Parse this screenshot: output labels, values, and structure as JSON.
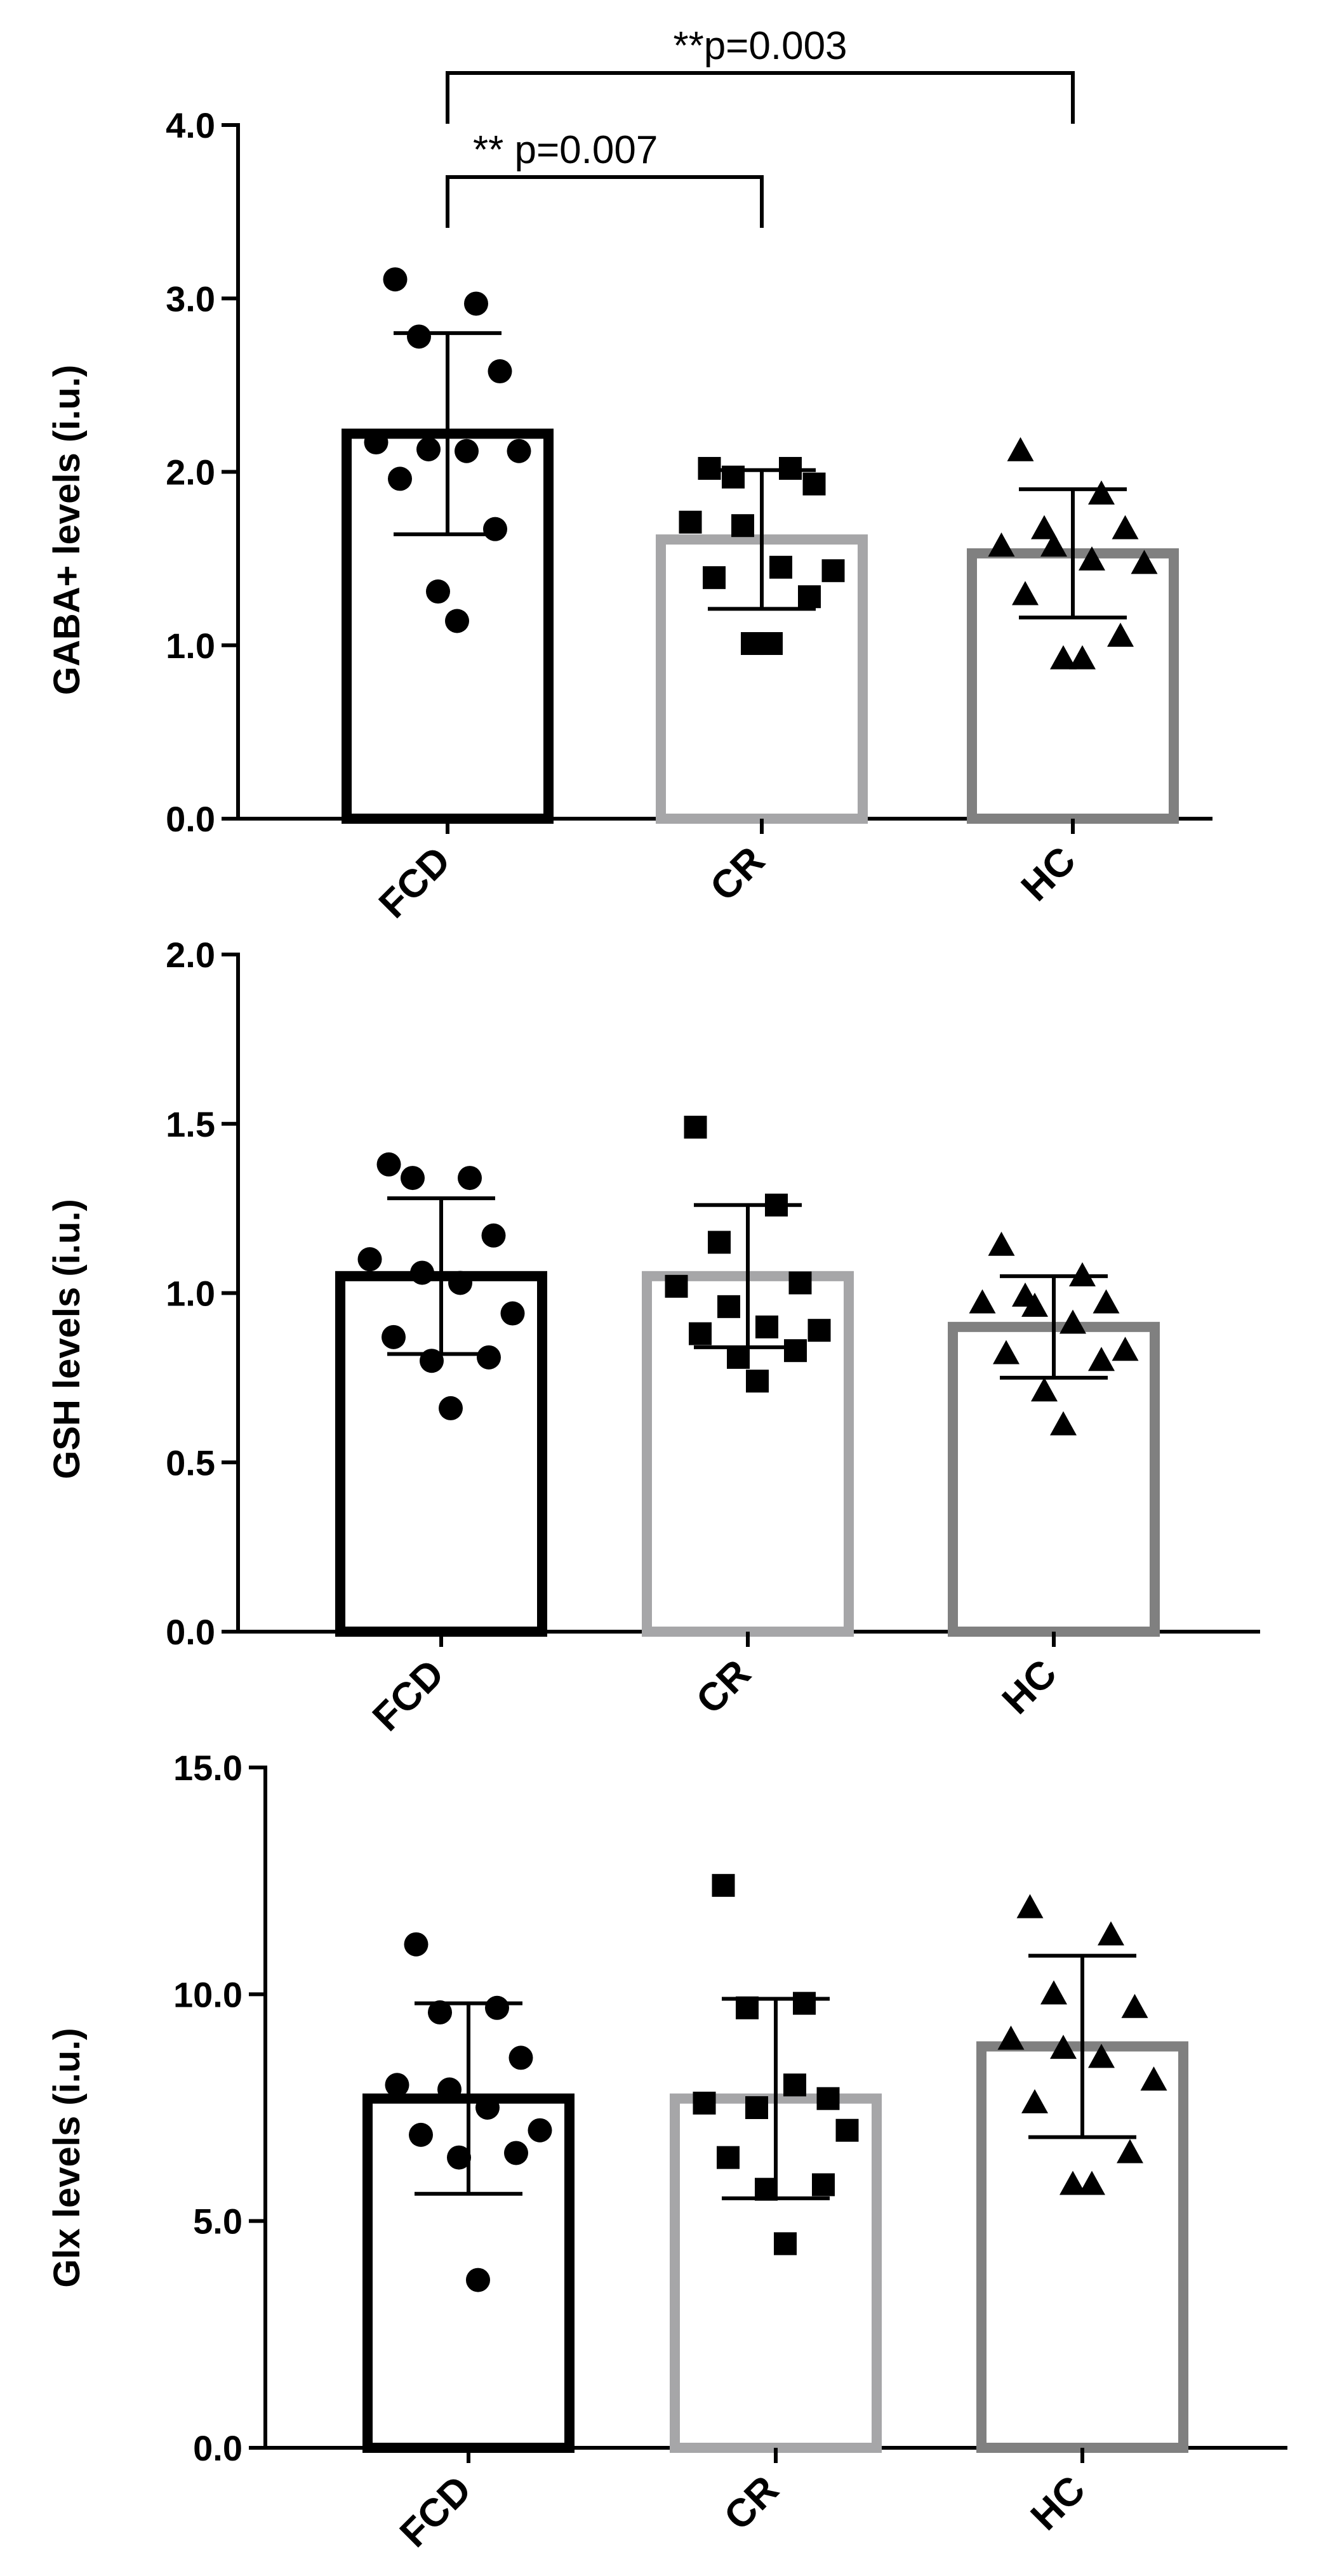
{
  "chart_data": [
    {
      "type": "bar",
      "ylabel": "GABA+ levels (i.u.)",
      "ylim": [
        0,
        4
      ],
      "yticks": [
        "0.0",
        "1.0",
        "2.0",
        "3.0",
        "4.0"
      ],
      "tick_values": [
        0,
        1,
        2,
        3,
        4
      ],
      "categories": [
        "FCD",
        "CR",
        "HC"
      ],
      "bar_colors": [
        "#000000",
        "#a6a6a8",
        "#808080"
      ],
      "markers": [
        "circle",
        "square",
        "triangle"
      ],
      "means": [
        2.22,
        1.61,
        1.53
      ],
      "sd": [
        0.58,
        0.4,
        0.37
      ],
      "points": [
        [
          3.11,
          2.97,
          2.78,
          2.58,
          2.17,
          2.13,
          2.12,
          2.12,
          1.96,
          1.67,
          1.31,
          1.14
        ],
        [
          2.02,
          2.02,
          1.97,
          1.93,
          1.71,
          1.69,
          1.45,
          1.43,
          1.39,
          1.28,
          1.01,
          1.01
        ],
        [
          2.12,
          1.87,
          1.67,
          1.67,
          1.57,
          1.57,
          1.49,
          1.47,
          1.29,
          1.05,
          0.92,
          0.92
        ]
      ],
      "annotations": [
        {
          "label": "** p=0.007",
          "from": 0,
          "to": 1,
          "level": 3.7
        },
        {
          "label": "**p=0.003",
          "from": 0,
          "to": 2,
          "level": 4.3
        }
      ]
    },
    {
      "type": "bar",
      "ylabel": "GSH levels (i.u.)",
      "ylim": [
        0,
        2
      ],
      "yticks": [
        "0.0",
        "0.5",
        "1.0",
        "1.5",
        "2.0"
      ],
      "tick_values": [
        0,
        0.5,
        1,
        1.5,
        2
      ],
      "categories": [
        "FCD",
        "CR",
        "HC"
      ],
      "bar_colors": [
        "#000000",
        "#a6a6a8",
        "#808080"
      ],
      "markers": [
        "circle",
        "square",
        "triangle"
      ],
      "means": [
        1.05,
        1.05,
        0.9
      ],
      "sd": [
        0.23,
        0.21,
        0.15
      ],
      "points": [
        [
          1.38,
          1.34,
          1.34,
          1.17,
          1.1,
          1.06,
          1.03,
          0.94,
          0.87,
          0.81,
          0.8,
          0.66
        ],
        [
          1.49,
          1.26,
          1.15,
          1.03,
          1.02,
          0.96,
          0.9,
          0.89,
          0.88,
          0.83,
          0.81,
          0.74
        ],
        [
          1.14,
          1.05,
          0.99,
          0.97,
          0.97,
          0.96,
          0.91,
          0.83,
          0.82,
          0.8,
          0.71,
          0.61
        ]
      ],
      "annotations": []
    },
    {
      "type": "bar",
      "ylabel": "Glx levels (i.u.)",
      "ylim": [
        0,
        15
      ],
      "yticks": [
        "0.0",
        "5.0",
        "10.0",
        "15.0"
      ],
      "tick_values": [
        0,
        5,
        10,
        15
      ],
      "categories": [
        "FCD",
        "CR",
        "HC"
      ],
      "bar_colors": [
        "#000000",
        "#a6a6a8",
        "#808080"
      ],
      "markers": [
        "circle",
        "square",
        "triangle"
      ],
      "means": [
        7.7,
        7.7,
        8.85
      ],
      "sd": [
        2.1,
        2.2,
        2.0
      ],
      "points": [
        [
          11.1,
          9.7,
          9.6,
          8.6,
          8.0,
          7.9,
          7.5,
          7.0,
          6.9,
          6.5,
          6.4,
          3.7
        ],
        [
          12.4,
          9.8,
          9.7,
          7.7,
          7.6,
          7.5,
          8.0,
          7.0,
          6.4,
          5.8,
          5.7,
          4.5
        ],
        [
          11.9,
          11.3,
          10.0,
          9.7,
          9.0,
          8.8,
          8.6,
          8.1,
          7.6,
          6.5,
          5.8,
          5.8
        ]
      ],
      "annotations": []
    }
  ]
}
